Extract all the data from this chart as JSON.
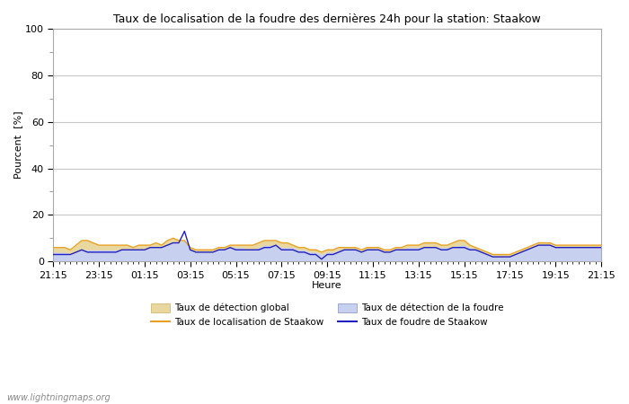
{
  "title": "Taux de localisation de la foudre des dernières 24h pour la station: Staakow",
  "xlabel": "Heure",
  "ylabel": "Pourcent  [%]",
  "xlim": [
    0,
    96
  ],
  "ylim": [
    0,
    100
  ],
  "yticks": [
    0,
    20,
    40,
    60,
    80,
    100
  ],
  "yticks_minor": [
    10,
    30,
    50,
    70,
    90
  ],
  "xtick_labels": [
    "21:15",
    "23:15",
    "01:15",
    "03:15",
    "05:15",
    "07:15",
    "09:15",
    "11:15",
    "13:15",
    "15:15",
    "17:15",
    "19:15",
    "21:15"
  ],
  "xtick_positions": [
    0,
    8,
    16,
    24,
    32,
    40,
    48,
    56,
    64,
    72,
    80,
    88,
    96
  ],
  "background_color": "#ffffff",
  "plot_bg_color": "#ffffff",
  "grid_color": "#c8c8c8",
  "watermark": "www.lightningmaps.org",
  "legend": [
    {
      "label": "Taux de détection global",
      "type": "fill",
      "color": "#e8d8a0",
      "edge_color": "#c8b060"
    },
    {
      "label": "Taux de localisation de Staakow",
      "type": "line",
      "color": "#e8a020"
    },
    {
      "label": "Taux de détection de la foudre",
      "type": "fill",
      "color": "#c8d0f0",
      "edge_color": "#8090c0"
    },
    {
      "label": "Taux de foudre de Staakow",
      "type": "line",
      "color": "#2020c0"
    }
  ],
  "detection_global": [
    6,
    6,
    6,
    5,
    7,
    9,
    9,
    8,
    7,
    7,
    7,
    7,
    7,
    7,
    6,
    7,
    7,
    7,
    8,
    7,
    9,
    10,
    9,
    9,
    6,
    5,
    5,
    5,
    5,
    6,
    6,
    7,
    7,
    7,
    7,
    7,
    8,
    9,
    9,
    9,
    8,
    8,
    7,
    6,
    6,
    5,
    5,
    4,
    5,
    5,
    6,
    6,
    6,
    6,
    5,
    6,
    6,
    6,
    5,
    5,
    6,
    6,
    7,
    7,
    7,
    8,
    8,
    8,
    7,
    7,
    8,
    9,
    9,
    7,
    6,
    5,
    4,
    3,
    3,
    3,
    3,
    4,
    5,
    6,
    7,
    8,
    8,
    8,
    7,
    7,
    7,
    7,
    7,
    7,
    7,
    7,
    7
  ],
  "localisation_staakow": [
    6,
    6,
    6,
    5,
    7,
    9,
    9,
    8,
    7,
    7,
    7,
    7,
    7,
    7,
    6,
    7,
    7,
    7,
    8,
    7,
    9,
    10,
    9,
    9,
    6,
    5,
    5,
    5,
    5,
    6,
    6,
    7,
    7,
    7,
    7,
    7,
    8,
    9,
    9,
    9,
    8,
    8,
    7,
    6,
    6,
    5,
    5,
    4,
    5,
    5,
    6,
    6,
    6,
    6,
    5,
    6,
    6,
    6,
    5,
    5,
    6,
    6,
    7,
    7,
    7,
    8,
    8,
    8,
    7,
    7,
    8,
    9,
    9,
    7,
    6,
    5,
    4,
    3,
    3,
    3,
    3,
    4,
    5,
    6,
    7,
    8,
    8,
    8,
    7,
    7,
    7,
    7,
    7,
    7,
    7,
    7,
    7
  ],
  "detection_foudre": [
    4,
    4,
    4,
    3,
    4,
    5,
    5,
    5,
    5,
    5,
    5,
    5,
    5,
    5,
    5,
    5,
    5,
    6,
    6,
    6,
    7,
    8,
    8,
    9,
    5,
    4,
    4,
    4,
    4,
    5,
    5,
    6,
    6,
    6,
    5,
    5,
    6,
    7,
    7,
    7,
    6,
    6,
    6,
    5,
    5,
    4,
    4,
    3,
    4,
    4,
    5,
    5,
    5,
    5,
    4,
    5,
    5,
    5,
    4,
    4,
    5,
    5,
    6,
    6,
    6,
    6,
    6,
    6,
    6,
    6,
    6,
    7,
    7,
    6,
    5,
    4,
    3,
    2,
    2,
    2,
    2,
    3,
    4,
    5,
    6,
    7,
    7,
    7,
    6,
    6,
    6,
    6,
    6,
    6,
    6,
    6,
    6
  ],
  "foudre_staakow": [
    3,
    3,
    3,
    3,
    4,
    5,
    4,
    4,
    4,
    4,
    4,
    4,
    5,
    5,
    5,
    5,
    5,
    6,
    6,
    6,
    7,
    8,
    8,
    13,
    5,
    4,
    4,
    4,
    4,
    5,
    5,
    6,
    5,
    5,
    5,
    5,
    5,
    6,
    6,
    7,
    5,
    5,
    5,
    4,
    4,
    3,
    3,
    1,
    3,
    3,
    4,
    5,
    5,
    5,
    4,
    5,
    5,
    5,
    4,
    4,
    5,
    5,
    5,
    5,
    5,
    6,
    6,
    6,
    5,
    5,
    6,
    6,
    6,
    5,
    5,
    4,
    3,
    2,
    2,
    2,
    2,
    3,
    4,
    5,
    6,
    7,
    7,
    7,
    6,
    6,
    6,
    6,
    6,
    6,
    6,
    6,
    6
  ]
}
